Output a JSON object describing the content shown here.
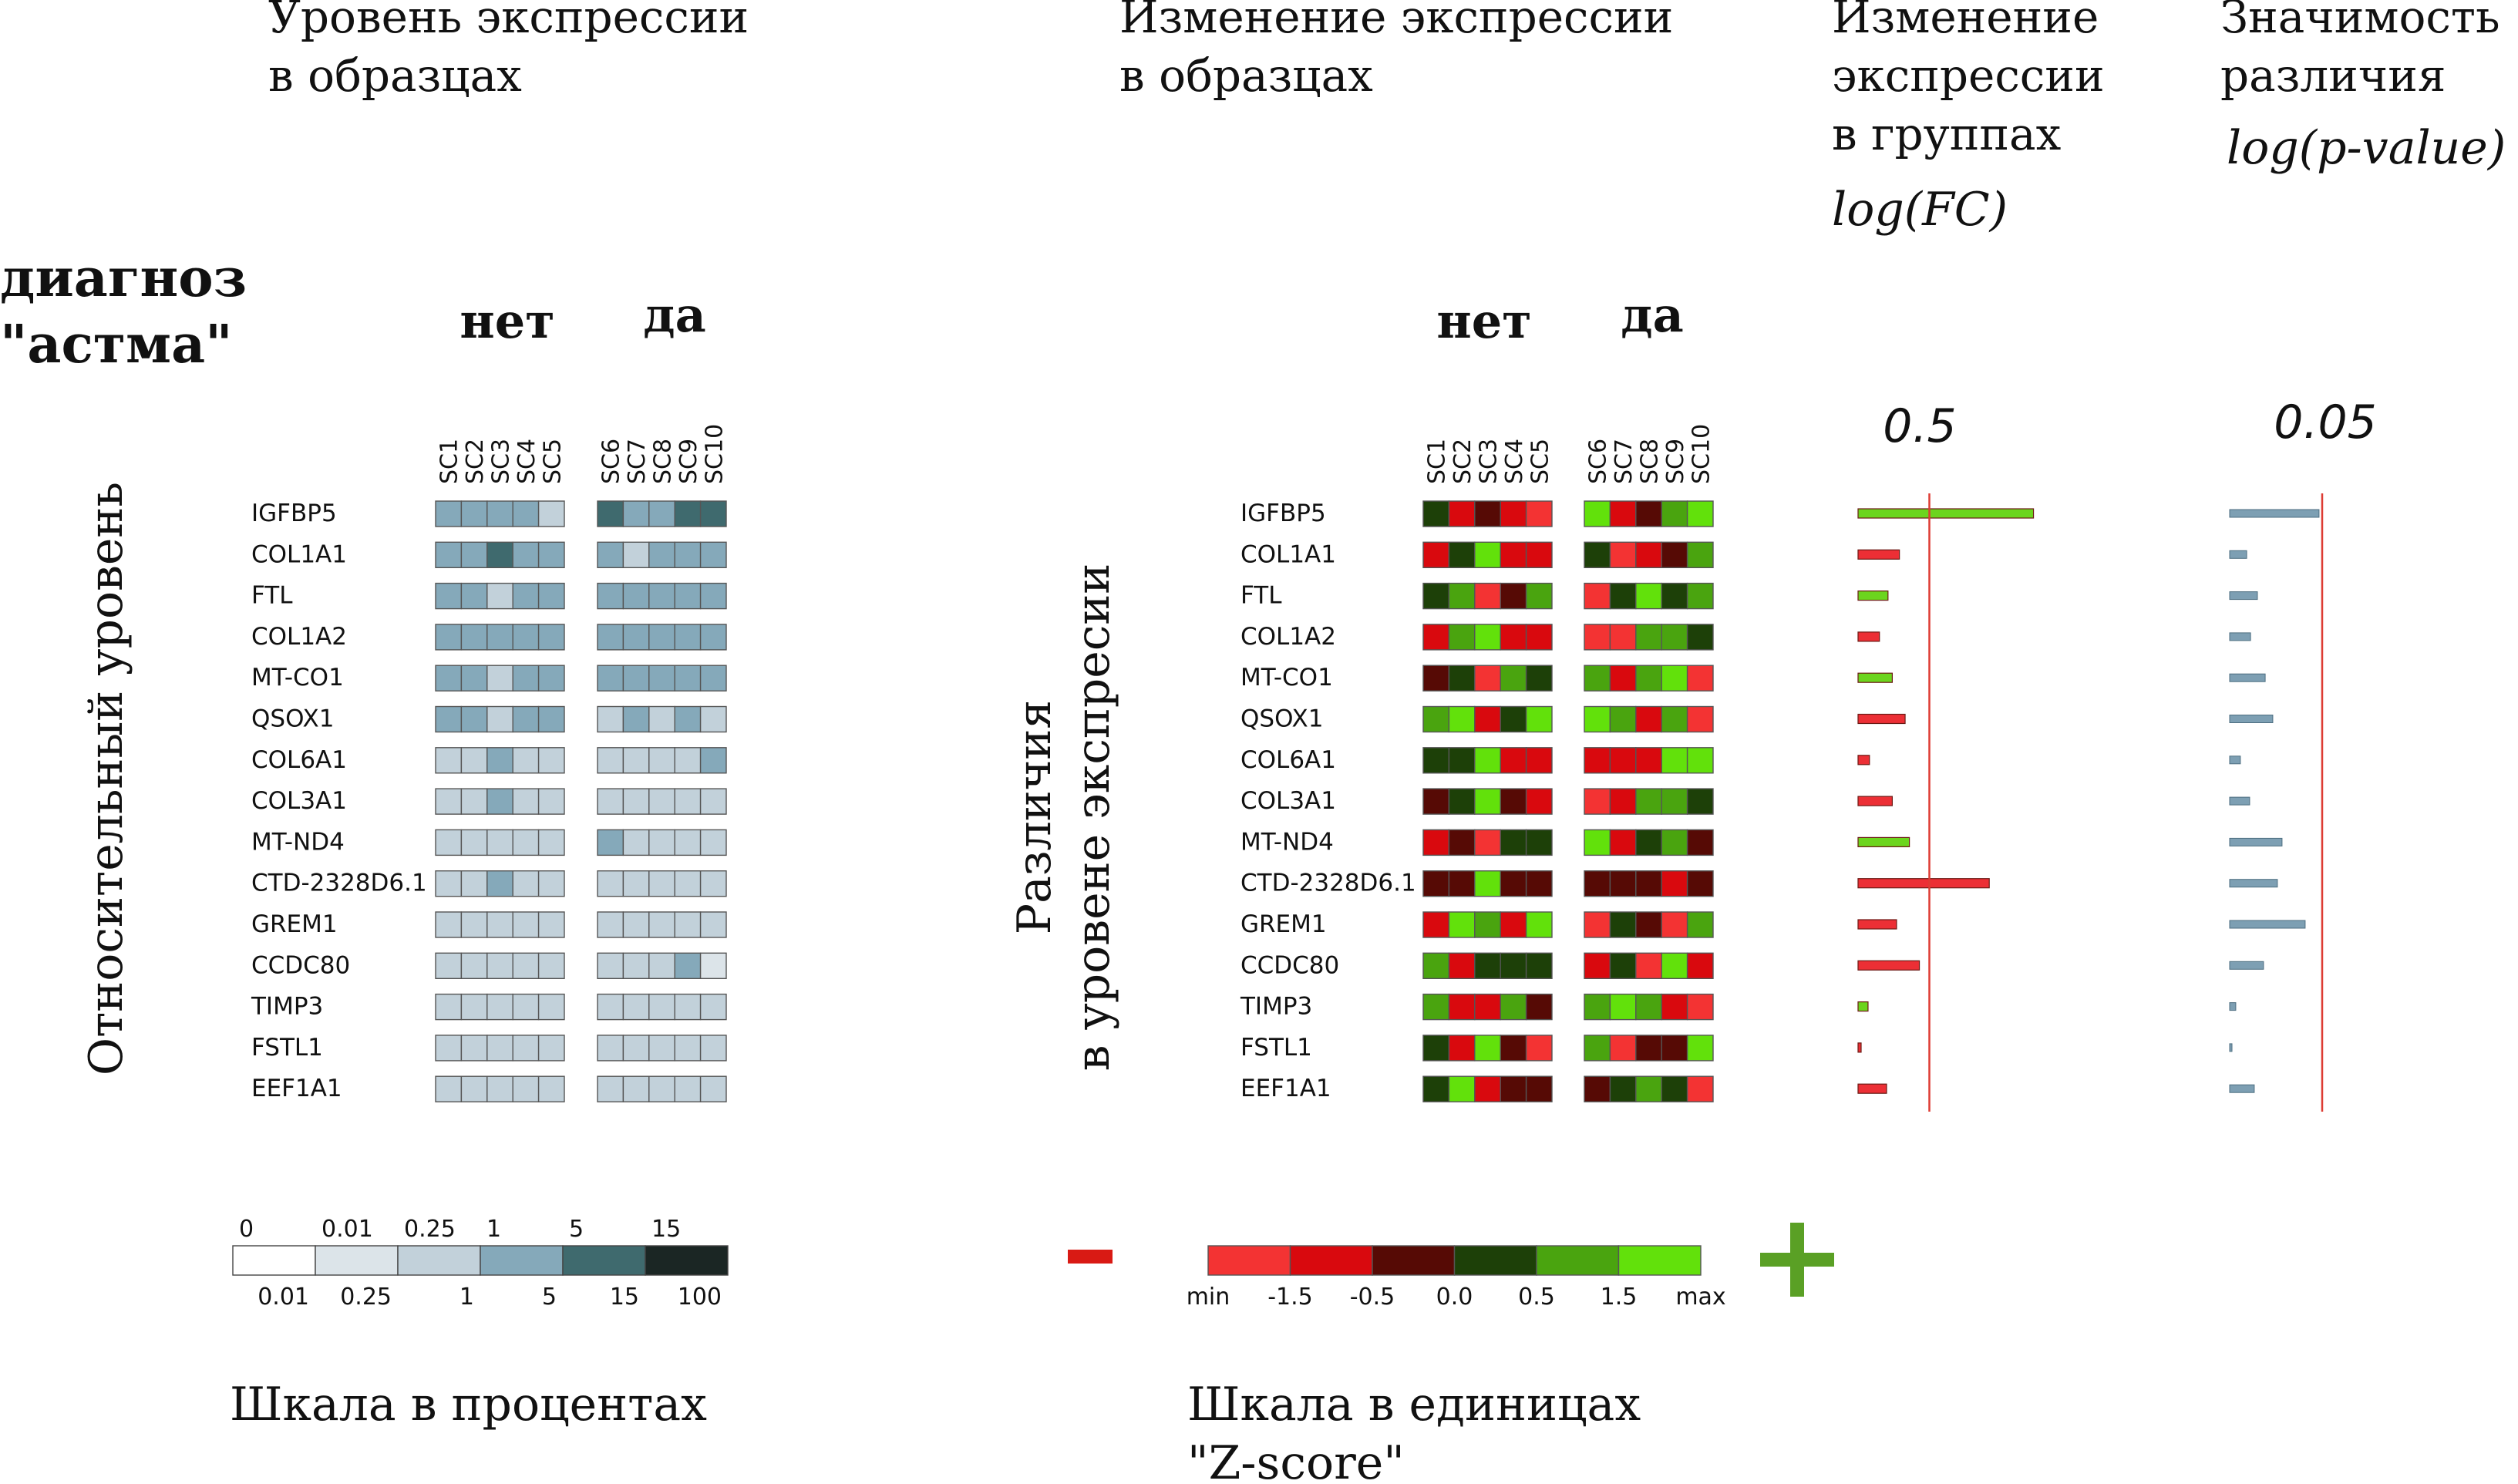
{
  "headings": {
    "left_title_1": "Уровень экспрессии",
    "left_title_2": "в образцах",
    "mid_title_1": "Изменение экспрессии",
    "mid_title_2": "в образцах",
    "fc_title_1": "Изменение",
    "fc_title_2": "экспрессии",
    "fc_title_3": "в группах",
    "fc_formula": "log(FC)",
    "p_title_1": "Значимость",
    "p_title_2": "различия",
    "p_formula": "log(p-value)",
    "diagnosis_1": "диагноз",
    "diagnosis_2": "\"астма\"",
    "group_no": "нет",
    "group_yes": "да",
    "left_ylabel": "Относительный уровень",
    "mid_ylabel_1": "Различия",
    "mid_ylabel_2": "в уровене экспресии",
    "scale_pct": "Шкала в процентах",
    "scale_z_1": "Шкала в единицах",
    "scale_z_2": "\"Z-score\"",
    "minus_sign": "−",
    "fc_threshold": "0.5",
    "p_threshold": "0.05"
  },
  "chart_data": [
    {
      "type": "heatmap",
      "name": "Уровень экспрессии в образцах",
      "genes": [
        "IGFBP5",
        "COL1A1",
        "FTL",
        "COL1A2",
        "MT-CO1",
        "QSOX1",
        "COL6A1",
        "COL3A1",
        "MT-ND4",
        "CTD-2328D6.1",
        "GREM1",
        "CCDC80",
        "TIMP3",
        "FSTL1",
        "EEF1A1"
      ],
      "samples": [
        "SC1",
        "SC2",
        "SC3",
        "SC4",
        "SC5",
        "SC6",
        "SC7",
        "SC8",
        "SC9",
        "SC10"
      ],
      "groups": [
        {
          "label": "нет",
          "samples": [
            "SC1",
            "SC2",
            "SC3",
            "SC4",
            "SC5"
          ]
        },
        {
          "label": "да",
          "samples": [
            "SC6",
            "SC7",
            "SC8",
            "SC9",
            "SC10"
          ]
        }
      ],
      "bin_levels": [
        [
          3,
          3,
          3,
          3,
          2,
          4,
          3,
          3,
          4,
          4
        ],
        [
          3,
          3,
          4,
          3,
          3,
          3,
          2,
          3,
          3,
          3
        ],
        [
          3,
          3,
          2,
          3,
          3,
          3,
          3,
          3,
          3,
          3
        ],
        [
          3,
          3,
          3,
          3,
          3,
          3,
          3,
          3,
          3,
          3
        ],
        [
          3,
          3,
          2,
          3,
          3,
          3,
          3,
          3,
          3,
          3
        ],
        [
          3,
          3,
          2,
          3,
          3,
          2,
          3,
          2,
          3,
          2
        ],
        [
          2,
          2,
          3,
          2,
          2,
          2,
          2,
          2,
          2,
          3
        ],
        [
          2,
          2,
          3,
          2,
          2,
          2,
          2,
          2,
          2,
          2
        ],
        [
          2,
          2,
          2,
          2,
          2,
          3,
          2,
          2,
          2,
          2
        ],
        [
          2,
          2,
          3,
          2,
          2,
          2,
          2,
          2,
          2,
          2
        ],
        [
          2,
          2,
          2,
          2,
          2,
          2,
          2,
          2,
          2,
          2
        ],
        [
          2,
          2,
          2,
          2,
          2,
          2,
          2,
          2,
          3,
          1
        ],
        [
          2,
          2,
          2,
          2,
          2,
          2,
          2,
          2,
          2,
          2
        ],
        [
          2,
          2,
          2,
          2,
          2,
          2,
          2,
          2,
          2,
          2
        ],
        [
          2,
          2,
          2,
          2,
          2,
          2,
          2,
          2,
          2,
          2
        ]
      ],
      "color_bins": [
        {
          "from": "0",
          "to": "0.01",
          "color": "#ffffff"
        },
        {
          "from": "0.01",
          "to": "0.25",
          "color": "#dce4e9"
        },
        {
          "from": "0.25",
          "to": "1",
          "color": "#c2d1da"
        },
        {
          "from": "1",
          "to": "5",
          "color": "#85a9ba"
        },
        {
          "from": "5",
          "to": "15",
          "color": "#3f6a6e"
        },
        {
          "from": "15",
          "to": "100",
          "color": "#1b2624"
        }
      ],
      "legend_top_labels": [
        "0",
        "0.01",
        "0.25",
        "1",
        "5",
        "15"
      ],
      "legend_bottom_labels": [
        "0.01",
        "0.25",
        "1",
        "5",
        "15",
        "100"
      ]
    },
    {
      "type": "heatmap",
      "name": "Изменение экспрессии в образцах",
      "genes": [
        "IGFBP5",
        "COL1A1",
        "FTL",
        "COL1A2",
        "MT-CO1",
        "QSOX1",
        "COL6A1",
        "COL3A1",
        "MT-ND4",
        "CTD-2328D6.1",
        "GREM1",
        "CCDC80",
        "TIMP3",
        "FSTL1",
        "EEF1A1"
      ],
      "samples": [
        "SC1",
        "SC2",
        "SC3",
        "SC4",
        "SC5",
        "SC6",
        "SC7",
        "SC8",
        "SC9",
        "SC10"
      ],
      "z_bins": [
        [
          3,
          1,
          2,
          1,
          0,
          5,
          1,
          2,
          4,
          5
        ],
        [
          1,
          3,
          5,
          1,
          1,
          3,
          0,
          1,
          2,
          4
        ],
        [
          3,
          4,
          0,
          2,
          4,
          0,
          3,
          5,
          3,
          4
        ],
        [
          1,
          4,
          5,
          1,
          1,
          0,
          0,
          4,
          4,
          3
        ],
        [
          2,
          3,
          0,
          4,
          3,
          4,
          1,
          4,
          5,
          0
        ],
        [
          4,
          5,
          1,
          3,
          5,
          5,
          4,
          1,
          4,
          0
        ],
        [
          3,
          3,
          5,
          1,
          1,
          1,
          1,
          1,
          5,
          5
        ],
        [
          2,
          3,
          5,
          2,
          1,
          0,
          1,
          4,
          4,
          3
        ],
        [
          1,
          2,
          0,
          3,
          3,
          5,
          1,
          3,
          4,
          2
        ],
        [
          2,
          2,
          5,
          2,
          2,
          2,
          2,
          2,
          1,
          2
        ],
        [
          1,
          5,
          4,
          1,
          5,
          0,
          3,
          2,
          0,
          4
        ],
        [
          4,
          1,
          3,
          3,
          3,
          1,
          3,
          0,
          5,
          1
        ],
        [
          4,
          1,
          1,
          4,
          2,
          4,
          5,
          4,
          1,
          0
        ],
        [
          3,
          1,
          5,
          2,
          0,
          4,
          0,
          2,
          2,
          5
        ],
        [
          3,
          5,
          1,
          2,
          2,
          2,
          3,
          4,
          3,
          0
        ]
      ],
      "color_bins": [
        {
          "label": "min",
          "color": "#f33333"
        },
        {
          "label": "-1.5",
          "color": "#d9090e"
        },
        {
          "label": "-0.5",
          "color": "#560a05"
        },
        {
          "label": "0.0",
          "color": "#1d4008"
        },
        {
          "label": "0.5",
          "color": "#4aa40f"
        },
        {
          "label": "1.5",
          "color": "#62e10b"
        }
      ],
      "legend_labels": [
        "min",
        "-1.5",
        "-0.5",
        "0.0",
        "0.5",
        "1.5",
        "max"
      ]
    },
    {
      "type": "bar",
      "name": "log(FC)",
      "categories": [
        "IGFBP5",
        "COL1A1",
        "FTL",
        "COL1A2",
        "MT-CO1",
        "QSOX1",
        "COL6A1",
        "COL3A1",
        "MT-ND4",
        "CTD-2328D6.1",
        "GREM1",
        "CCDC80",
        "TIMP3",
        "FSTL1",
        "EEF1A1"
      ],
      "values": [
        1.23,
        0.29,
        0.21,
        0.15,
        0.24,
        0.33,
        0.08,
        0.24,
        0.36,
        0.92,
        0.27,
        0.43,
        0.07,
        0.01,
        0.2
      ],
      "direction": [
        "up",
        "down",
        "up",
        "down",
        "up",
        "down",
        "down",
        "down",
        "up",
        "down",
        "down",
        "down",
        "up",
        "down",
        "down"
      ],
      "threshold": 0.5,
      "colors": {
        "up": "#6cd51e",
        "down": "#ec2f35",
        "threshold_line": "#dd3b33"
      }
    },
    {
      "type": "bar",
      "name": "log(p-value)",
      "categories": [
        "IGFBP5",
        "COL1A1",
        "FTL",
        "COL1A2",
        "MT-CO1",
        "QSOX1",
        "COL6A1",
        "COL3A1",
        "MT-ND4",
        "CTD-2328D6.1",
        "GREM1",
        "CCDC80",
        "TIMP3",
        "FSTL1",
        "EEF1A1"
      ],
      "values": [
        0.0483,
        0.0092,
        0.015,
        0.0113,
        0.0192,
        0.0233,
        0.0058,
        0.0108,
        0.0283,
        0.0258,
        0.0408,
        0.0183,
        0.0033,
        0.0008,
        0.0133
      ],
      "threshold": 0.05,
      "colors": {
        "bar": "#7d9fb3",
        "threshold_line": "#dd3b33"
      }
    }
  ]
}
